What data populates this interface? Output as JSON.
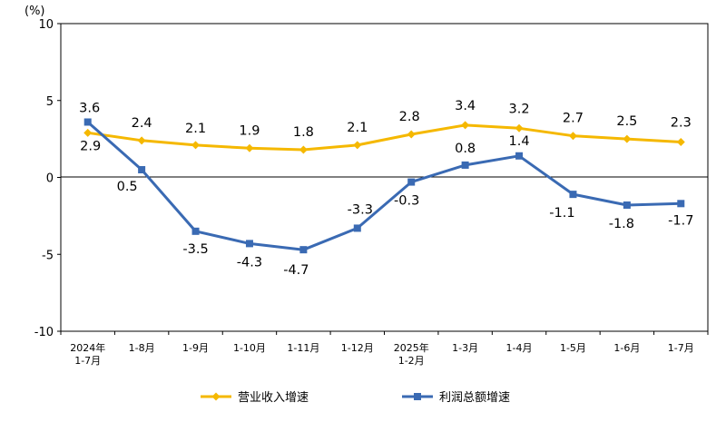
{
  "chart_data": {
    "type": "line",
    "unit_label": "(%)",
    "ylim": [
      -10,
      10
    ],
    "yticks": [
      10,
      5,
      0,
      -5,
      -10
    ],
    "categories": [
      [
        "2024年",
        "1-7月"
      ],
      [
        "1-8月"
      ],
      [
        "1-9月"
      ],
      [
        "1-10月"
      ],
      [
        "1-11月"
      ],
      [
        "1-12月"
      ],
      [
        "2025年",
        "1-2月"
      ],
      [
        "1-3月"
      ],
      [
        "1-4月"
      ],
      [
        "1-5月"
      ],
      [
        "1-6月"
      ],
      [
        "1-7月"
      ]
    ],
    "series": [
      {
        "name": "营业收入增速",
        "color": "#f5b800",
        "marker": "diamond",
        "values": [
          2.9,
          2.4,
          2.1,
          1.9,
          1.8,
          2.1,
          2.8,
          3.4,
          3.2,
          2.7,
          2.5,
          2.3
        ],
        "labels": [
          "2.9",
          "2.4",
          "2.1",
          "1.9",
          "1.8",
          "2.1",
          "2.8",
          "3.4",
          "3.2",
          "2.7",
          "2.5",
          "2.3"
        ]
      },
      {
        "name": "利润总额增速",
        "color": "#3a6ab3",
        "marker": "square",
        "values": [
          3.6,
          0.5,
          -3.5,
          -4.3,
          -4.7,
          -3.3,
          -0.3,
          0.8,
          1.4,
          -1.1,
          -1.8,
          -1.7
        ],
        "labels": [
          "3.6",
          "0.5",
          "-3.5",
          "-4.3",
          "-4.7",
          "-3.3",
          "-0.3",
          "0.8",
          "1.4",
          "-1.1",
          "-1.8",
          "-1.7"
        ]
      }
    ]
  }
}
